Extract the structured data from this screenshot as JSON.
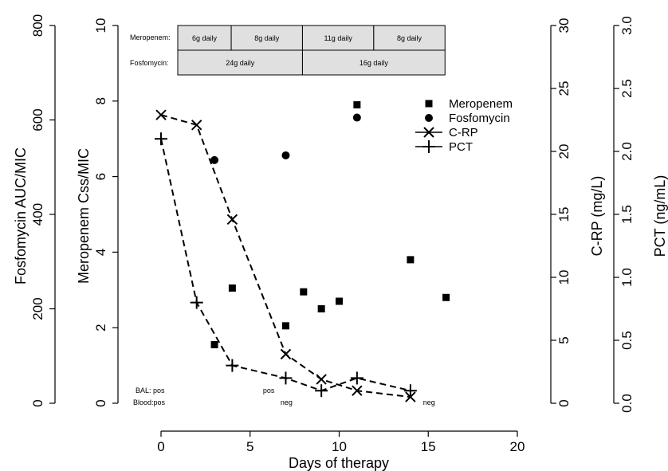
{
  "chart_data": {
    "type": "scatter",
    "xlabel": "Days of therapy",
    "xlim": [
      0,
      20
    ],
    "x_ticks": [
      "0",
      "5",
      "10",
      "15",
      "20"
    ],
    "axes": {
      "fosfomycin": {
        "label": "Fosfomycin AUC/MIC",
        "ylim": [
          0,
          800
        ],
        "ticks": [
          "0",
          "200",
          "400",
          "600",
          "800"
        ]
      },
      "meropenem": {
        "label": "Meropenem Css/MIC",
        "ylim": [
          0,
          10
        ],
        "ticks": [
          "0",
          "2",
          "4",
          "6",
          "8",
          "10"
        ]
      },
      "crp": {
        "label": "C-RP (mg/L)",
        "ylim": [
          0,
          30
        ],
        "ticks": [
          "0",
          "5",
          "10",
          "15",
          "20",
          "25",
          "30"
        ]
      },
      "pct": {
        "label": "PCT (ng/mL)",
        "ylim": [
          0,
          3.0
        ],
        "ticks": [
          "0.0",
          "0.5",
          "1.0",
          "1.5",
          "2.0",
          "2.5",
          "3.0"
        ]
      }
    },
    "series": [
      {
        "name": "Meropenem",
        "marker": "square",
        "axis": "meropenem",
        "line": false,
        "points": [
          [
            3,
            1.55
          ],
          [
            4,
            3.05
          ],
          [
            7,
            2.05
          ],
          [
            8,
            2.95
          ],
          [
            9,
            2.5
          ],
          [
            10,
            2.7
          ],
          [
            11,
            7.9
          ],
          [
            14,
            3.8
          ],
          [
            16,
            2.8
          ]
        ]
      },
      {
        "name": "Fosfomycin",
        "marker": "circle",
        "axis": "fosfomycin",
        "line": false,
        "points": [
          [
            3,
            515
          ],
          [
            7,
            525
          ],
          [
            11,
            605
          ]
        ]
      },
      {
        "name": "C-RP",
        "marker": "x",
        "axis": "crp",
        "line": true,
        "points": [
          [
            0,
            22.9
          ],
          [
            2,
            22.1
          ],
          [
            4,
            14.6
          ],
          [
            7,
            3.9
          ],
          [
            9,
            1.9
          ],
          [
            11,
            1.0
          ],
          [
            14,
            0.5
          ]
        ]
      },
      {
        "name": "PCT",
        "marker": "plus",
        "axis": "pct",
        "line": true,
        "points": [
          [
            0,
            2.1
          ],
          [
            2,
            0.8
          ],
          [
            4,
            0.3
          ],
          [
            7,
            0.2
          ],
          [
            9,
            0.1
          ],
          [
            11,
            0.2
          ],
          [
            14,
            0.1
          ]
        ]
      }
    ],
    "legend": {
      "position": "top-right",
      "entries": [
        "Meropenem",
        "Fosfomycin",
        "C-RP",
        "PCT"
      ]
    },
    "dosing": {
      "rows": [
        {
          "label": "Meropenem:",
          "segments": [
            {
              "text": "6g daily",
              "from": 0,
              "to": 3
            },
            {
              "text": "8g daily",
              "from": 3,
              "to": 7
            },
            {
              "text": "11g daily",
              "from": 7,
              "to": 11
            },
            {
              "text": "8g daily",
              "from": 11,
              "to": 15
            }
          ]
        },
        {
          "label": "Fosfomycin:",
          "segments": [
            {
              "text": "24g daily",
              "from": 0,
              "to": 7
            },
            {
              "text": "16g daily",
              "from": 7,
              "to": 15
            }
          ]
        }
      ]
    },
    "cultures": {
      "bal_label": "BAL: pos",
      "blood_label": "Blood:pos",
      "annotations": [
        {
          "text": "pos",
          "x": 6,
          "row": "bal"
        },
        {
          "text": "neg",
          "x": 7,
          "row": "blood"
        },
        {
          "text": "neg",
          "x": 15,
          "row": "blood"
        }
      ]
    }
  }
}
